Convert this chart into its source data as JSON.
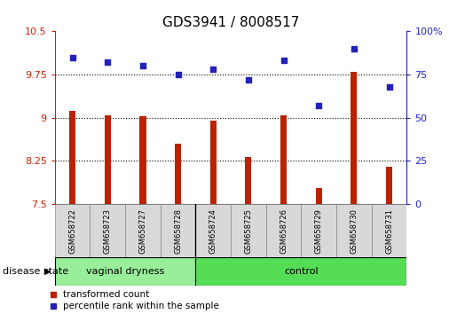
{
  "title": "GDS3941 / 8008517",
  "samples": [
    "GSM658722",
    "GSM658723",
    "GSM658727",
    "GSM658728",
    "GSM658724",
    "GSM658725",
    "GSM658726",
    "GSM658729",
    "GSM658730",
    "GSM658731"
  ],
  "transformed_count": [
    9.12,
    9.05,
    9.02,
    8.55,
    8.95,
    8.32,
    9.05,
    7.78,
    9.8,
    8.15
  ],
  "percentile_rank": [
    85,
    82,
    80,
    75,
    78,
    72,
    83,
    57,
    90,
    68
  ],
  "group1_samples": 4,
  "group1_label": "vaginal dryness",
  "group2_label": "control",
  "ylim_left": [
    7.5,
    10.5
  ],
  "ylim_right": [
    0,
    100
  ],
  "yticks_left": [
    7.5,
    8.25,
    9.0,
    9.75,
    10.5
  ],
  "yticks_right": [
    0,
    25,
    50,
    75,
    100
  ],
  "ytick_labels_left": [
    "7.5",
    "8.25",
    "9",
    "9.75",
    "10.5"
  ],
  "ytick_labels_right": [
    "0",
    "25",
    "50",
    "75",
    "100%"
  ],
  "hlines": [
    8.25,
    9.0,
    9.75
  ],
  "bar_color": "#bb2200",
  "dot_color": "#2222bb",
  "bar_width": 0.18,
  "legend_labels": [
    "transformed count",
    "percentile rank within the sample"
  ],
  "group1_color": "#99ee99",
  "group2_color": "#55dd55",
  "xlabel_label": "disease state",
  "left_axis_color": "#cc2200",
  "right_axis_color": "#2222cc",
  "tick_fontsize": 8,
  "title_fontsize": 11
}
